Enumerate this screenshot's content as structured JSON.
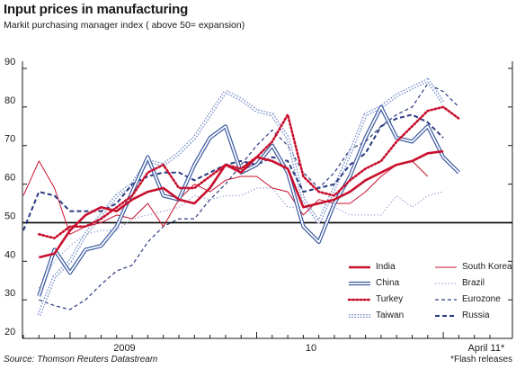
{
  "title": "Input prices in manufacturing",
  "subtitle": "Markit purchasing manager index ( above 50= expansion)",
  "source": "Source: Thomson Reuters Datastream",
  "footnote": "*Flash releases",
  "chart_data": {
    "type": "line",
    "title": "Input prices in manufacturing",
    "subtitle": "Markit purchasing manager index ( above 50= expansion)",
    "ylim": [
      20,
      90
    ],
    "y_ticks": [
      20,
      30,
      40,
      50,
      60,
      70,
      80,
      90
    ],
    "y_tick_labels": [
      "20",
      "30",
      "40",
      "50",
      "60",
      "70",
      "80",
      "90"
    ],
    "reference_line": 50,
    "grid": false,
    "x_tick_labels": [
      "2009",
      "10",
      "April 11*"
    ],
    "x": [
      "2008-10",
      "2008-11",
      "2008-12",
      "2009-01",
      "2009-02",
      "2009-03",
      "2009-04",
      "2009-05",
      "2009-06",
      "2009-07",
      "2009-08",
      "2009-09",
      "2009-10",
      "2009-11",
      "2009-12",
      "2010-01",
      "2010-02",
      "2010-03",
      "2010-04",
      "2010-05",
      "2010-06",
      "2010-07",
      "2010-08",
      "2010-09",
      "2010-10",
      "2010-11",
      "2010-12",
      "2011-01",
      "2011-02",
      "2011-03",
      "2011-04"
    ],
    "legend_position": "bottom-right",
    "series": [
      {
        "name": "India",
        "color": "#c8102e",
        "style": "thick",
        "values": [
          null,
          41.0,
          42.0,
          48.0,
          52.0,
          54.0,
          53.0,
          56.0,
          58.0,
          59.0,
          56.0,
          55.0,
          59.0,
          65.0,
          63.0,
          67.0,
          66.0,
          64.0,
          54.0,
          55.0,
          56.0,
          58.0,
          61.0,
          63.0,
          65.0,
          66.0,
          68.0,
          68.5,
          null,
          null,
          null
        ]
      },
      {
        "name": "South Korea",
        "color": "#c8102e",
        "style": "thin",
        "values": [
          57.0,
          66.0,
          59.0,
          47.0,
          49.0,
          50.0,
          52.0,
          51.0,
          55.0,
          49.0,
          56.0,
          60.0,
          58.0,
          61.0,
          62.0,
          62.0,
          59.0,
          58.0,
          52.0,
          56.0,
          55.0,
          55.0,
          58.0,
          62.0,
          65.0,
          66.0,
          62.0,
          null,
          null,
          null,
          null
        ]
      },
      {
        "name": "China",
        "color": "#3a58a0",
        "style": "double",
        "values": [
          null,
          31.0,
          43.0,
          37.0,
          43.0,
          44.0,
          49.0,
          58.0,
          67.0,
          57.0,
          56.0,
          65.0,
          72.0,
          75.0,
          63.0,
          65.0,
          70.0,
          63.0,
          49.0,
          45.0,
          55.0,
          62.0,
          72.0,
          80.0,
          72.0,
          71.0,
          75.0,
          67.0,
          63.0,
          null,
          null
        ]
      },
      {
        "name": "Brazil",
        "color": "#6d86c4",
        "style": "dotted",
        "values": [
          null,
          33.0,
          40.0,
          44.0,
          47.0,
          48.0,
          48.0,
          51.0,
          52.0,
          53.0,
          54.0,
          57.0,
          56.0,
          57.0,
          57.0,
          59.0,
          59.0,
          54.0,
          54.0,
          55.0,
          54.0,
          52.0,
          52.0,
          52.0,
          57.0,
          54.0,
          57.0,
          58.0,
          null,
          null,
          null
        ]
      },
      {
        "name": "Turkey",
        "color": "#c8102e",
        "style": "heavy-dotted",
        "values": [
          null,
          47.0,
          46.0,
          49.0,
          49.0,
          51.0,
          54.0,
          57.0,
          63.0,
          65.0,
          59.0,
          59.0,
          62.0,
          65.0,
          64.0,
          67.0,
          71.0,
          78.0,
          62.0,
          58.0,
          57.0,
          61.0,
          64.0,
          66.0,
          71.0,
          75.0,
          79.0,
          80.0,
          77.0,
          null,
          null
        ]
      },
      {
        "name": "Eurozone",
        "color": "#2a3a80",
        "style": "dashed",
        "values": [
          null,
          30.0,
          28.5,
          27.5,
          30.0,
          34.0,
          37.5,
          39.0,
          45.0,
          49.0,
          51.0,
          51.0,
          56.0,
          60.0,
          65.0,
          70.0,
          74.0,
          70.0,
          63.0,
          59.0,
          63.0,
          69.0,
          71.0,
          75.0,
          78.0,
          80.0,
          86.0,
          84.0,
          80.0,
          null,
          null
        ]
      },
      {
        "name": "Taiwan",
        "color": "#6d86c4",
        "style": "double-dotted",
        "values": [
          null,
          26.0,
          36.0,
          40.0,
          47.0,
          52.0,
          57.0,
          60.0,
          66.0,
          65.0,
          68.0,
          72.0,
          78.0,
          84.0,
          82.0,
          79.0,
          78.0,
          72.0,
          56.0,
          50.0,
          59.0,
          68.0,
          78.0,
          80.0,
          83.0,
          85.0,
          87.0,
          81.0,
          null,
          null,
          null
        ]
      },
      {
        "name": "Russia",
        "color": "#2a3a80",
        "style": "heavy-dashed",
        "values": [
          48.0,
          58.0,
          57.0,
          53.0,
          53.0,
          53.0,
          55.0,
          60.0,
          62.0,
          63.0,
          63.0,
          61.0,
          63.0,
          65.0,
          66.0,
          65.0,
          67.0,
          66.0,
          58.0,
          59.0,
          60.0,
          65.0,
          68.0,
          75.0,
          77.0,
          78.0,
          76.0,
          72.0,
          null,
          null,
          null
        ]
      }
    ]
  }
}
